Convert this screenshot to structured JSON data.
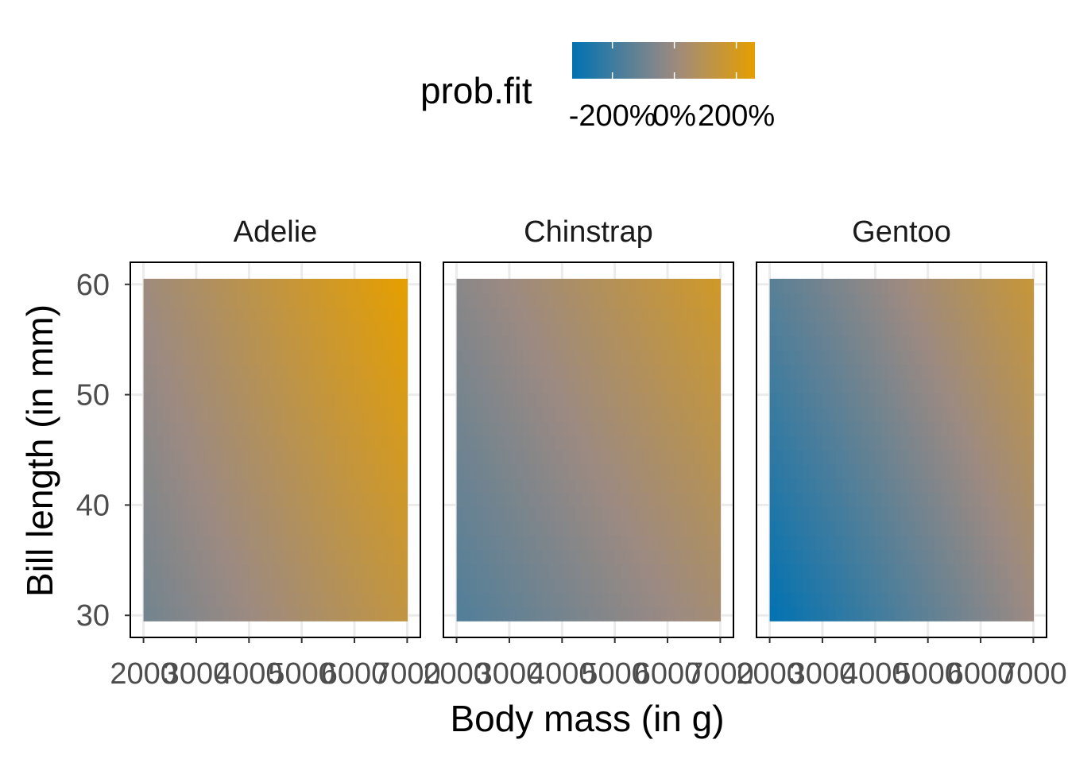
{
  "chart_data": {
    "type": "heatmap",
    "xlabel": "Body mass (in g)",
    "ylabel": "Bill length (in mm)",
    "xlim": [
      1750,
      7250
    ],
    "ylim": [
      28,
      62
    ],
    "x_ticks": [
      2000,
      3000,
      4000,
      5000,
      6000,
      7000
    ],
    "y_ticks": [
      30,
      40,
      50,
      60
    ],
    "data_extent": {
      "x": [
        2000,
        7000
      ],
      "y": [
        29.5,
        60.5
      ]
    },
    "legend": {
      "title": "prob.fit",
      "position": "top",
      "tick_values": [
        -2,
        0,
        2
      ],
      "tick_labels": [
        "-200%",
        "0%",
        "200%"
      ],
      "range": [
        -3.3,
        2.6
      ],
      "low_color": "#0072B2",
      "mid_color": "#9C8A82",
      "high_color": "#E69F00"
    },
    "panels": [
      {
        "name": "Adelie",
        "corners": {
          "x_low_y_low": -0.9,
          "x_high_y_low": 1.3,
          "x_low_y_high": 0.1,
          "x_high_y_high": 2.6
        }
      },
      {
        "name": "Chinstrap",
        "corners": {
          "x_low_y_low": -1.6,
          "x_high_y_low": 0.3,
          "x_low_y_high": -0.4,
          "x_high_y_high": 1.8
        }
      },
      {
        "name": "Gentoo",
        "corners": {
          "x_low_y_low": -3.3,
          "x_high_y_low": 0.0,
          "x_low_y_high": -1.4,
          "x_high_y_high": 1.5
        }
      }
    ]
  }
}
